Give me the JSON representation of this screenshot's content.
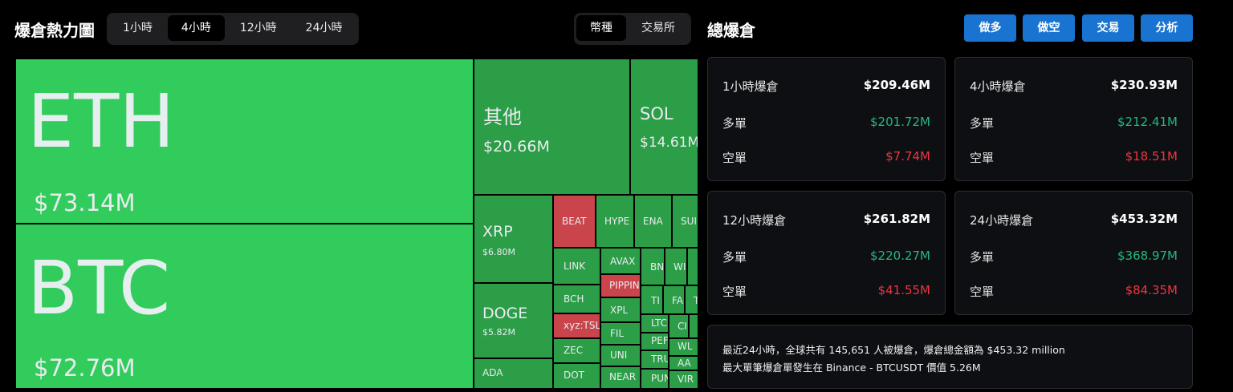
{
  "heatmap": {
    "title": "爆倉熱力圖",
    "time_tabs": [
      "1小時",
      "4小時",
      "12小時",
      "24小時"
    ],
    "active_time_tab": "4小時",
    "type_tabs": [
      "幣種",
      "交易所"
    ],
    "active_type_tab": "幣種",
    "tiles": {
      "eth": {
        "symbol": "ETH",
        "value": "$73.14M"
      },
      "btc": {
        "symbol": "BTC",
        "value": "$72.76M"
      },
      "other": {
        "symbol": "其他",
        "value": "$20.66M"
      },
      "sol": {
        "symbol": "SOL",
        "value": "$14.61M"
      },
      "xrp": {
        "symbol": "XRP",
        "value": "$6.80M"
      },
      "doge": {
        "symbol": "DOGE",
        "value": "$5.82M"
      },
      "ada": {
        "symbol": "ADA"
      },
      "beat": {
        "symbol": "BEAT"
      },
      "hype": {
        "symbol": "HYPE"
      },
      "ena": {
        "symbol": "ENA"
      },
      "sui": {
        "symbol": "SUI"
      },
      "link": {
        "symbol": "LINK"
      },
      "avax": {
        "symbol": "AVAX"
      },
      "bn": {
        "symbol": "BN"
      },
      "wi": {
        "symbol": "WI"
      },
      "pippin": {
        "symbol": "PIPPIN"
      },
      "bch": {
        "symbol": "BCH"
      },
      "xpl": {
        "symbol": "XPL"
      },
      "ti": {
        "symbol": "TI"
      },
      "fa": {
        "symbol": "FA"
      },
      "t": {
        "symbol": "T"
      },
      "xyztsla": {
        "symbol": "xyz:TSLA"
      },
      "fil": {
        "symbol": "FIL"
      },
      "ltc": {
        "symbol": "LTC"
      },
      "ci": {
        "symbol": "CI"
      },
      "pef": {
        "symbol": "PEF"
      },
      "zec": {
        "symbol": "ZEC"
      },
      "uni": {
        "symbol": "UNI"
      },
      "wl": {
        "symbol": "WL"
      },
      "tru": {
        "symbol": "TRU"
      },
      "aa": {
        "symbol": "AA"
      },
      "dot": {
        "symbol": "DOT"
      },
      "near": {
        "symbol": "NEAR"
      },
      "pun": {
        "symbol": "PUN"
      },
      "vir": {
        "symbol": "VIR"
      }
    }
  },
  "total": {
    "title": "總爆倉",
    "buttons": [
      "做多",
      "做空",
      "交易",
      "分析"
    ],
    "cards": [
      {
        "period": "1小時爆倉",
        "total": "$209.46M",
        "long_label": "多單",
        "long": "$201.72M",
        "short_label": "空單",
        "short": "$7.74M"
      },
      {
        "period": "4小時爆倉",
        "total": "$230.93M",
        "long_label": "多單",
        "long": "$212.41M",
        "short_label": "空單",
        "short": "$18.51M"
      },
      {
        "period": "12小時爆倉",
        "total": "$261.82M",
        "long_label": "多單",
        "long": "$220.27M",
        "short_label": "空單",
        "short": "$41.55M"
      },
      {
        "period": "24小時爆倉",
        "total": "$453.32M",
        "long_label": "多單",
        "long": "$368.97M",
        "short_label": "空單",
        "short": "$84.35M"
      }
    ],
    "summary_line1": "最近24小時，全球共有 145,651 人被爆倉，爆倉總金額為 $453.32 million",
    "summary_line2": "最大單筆爆倉單發生在 Binance - BTCUSDT 價值 5.26M"
  },
  "colors": {
    "bright_green": "#31cc5b",
    "mid_green": "#2b9e47",
    "red": "#c9444b",
    "long": "#26b87f",
    "short": "#f0353f",
    "button": "#1874d0"
  }
}
